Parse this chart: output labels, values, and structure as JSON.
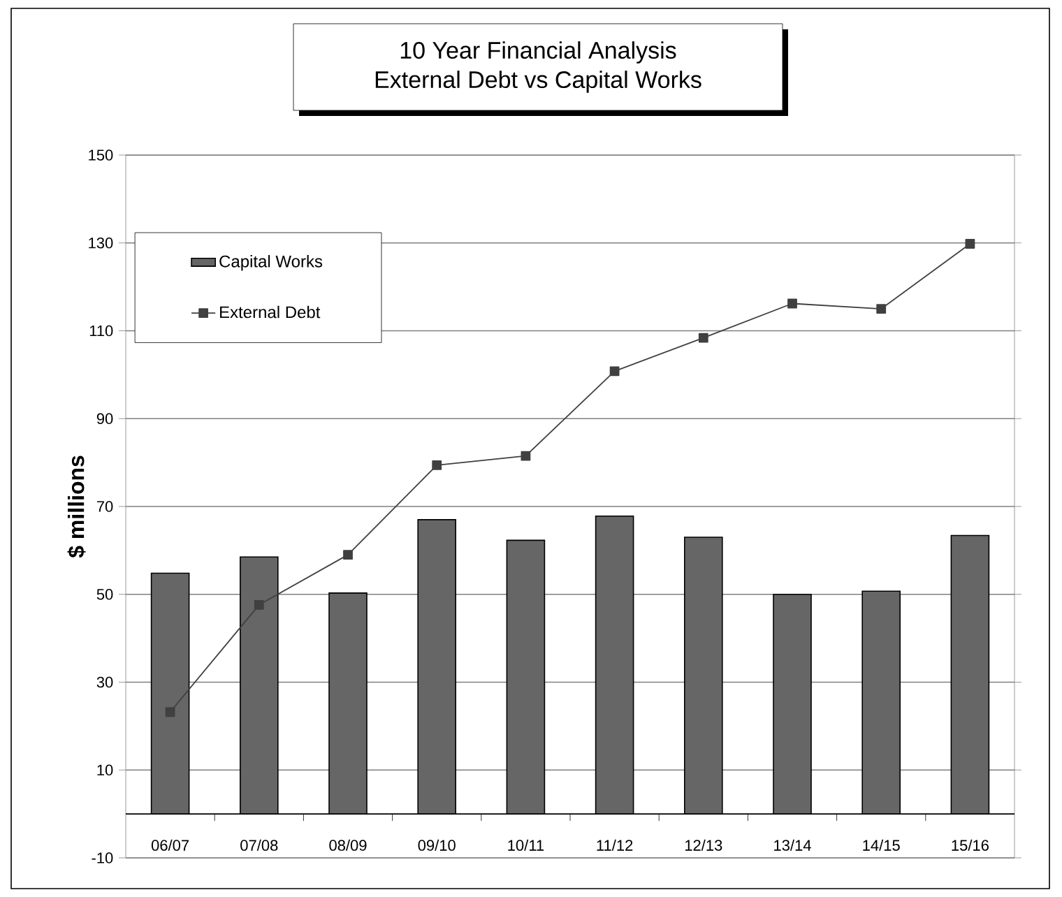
{
  "chart_data": {
    "type": "bar",
    "title": "10 Year Financial Analysis",
    "subtitle": "External Debt  vs Capital Works",
    "ylabel": "$ millions",
    "categories": [
      "06/07",
      "07/08",
      "08/09",
      "09/10",
      "10/11",
      "11/12",
      "12/13",
      "13/14",
      "14/15",
      "15/16"
    ],
    "series": [
      {
        "name": "Capital Works",
        "type": "bar",
        "color": "#666666",
        "values": [
          54.8,
          58.5,
          50.3,
          67,
          62.3,
          67.8,
          63,
          50,
          50.7,
          63.4
        ]
      },
      {
        "name": "External Debt",
        "type": "line",
        "color": "#404040",
        "marker": "square",
        "values": [
          23.2,
          47.6,
          59,
          79.4,
          81.5,
          100.8,
          108.4,
          116.2,
          115,
          129.8
        ]
      }
    ],
    "ylim": [
      -10,
      150
    ],
    "yticks": [
      -10,
      10,
      30,
      50,
      70,
      90,
      110,
      130,
      150
    ],
    "grid": "y",
    "legend": "top left"
  }
}
